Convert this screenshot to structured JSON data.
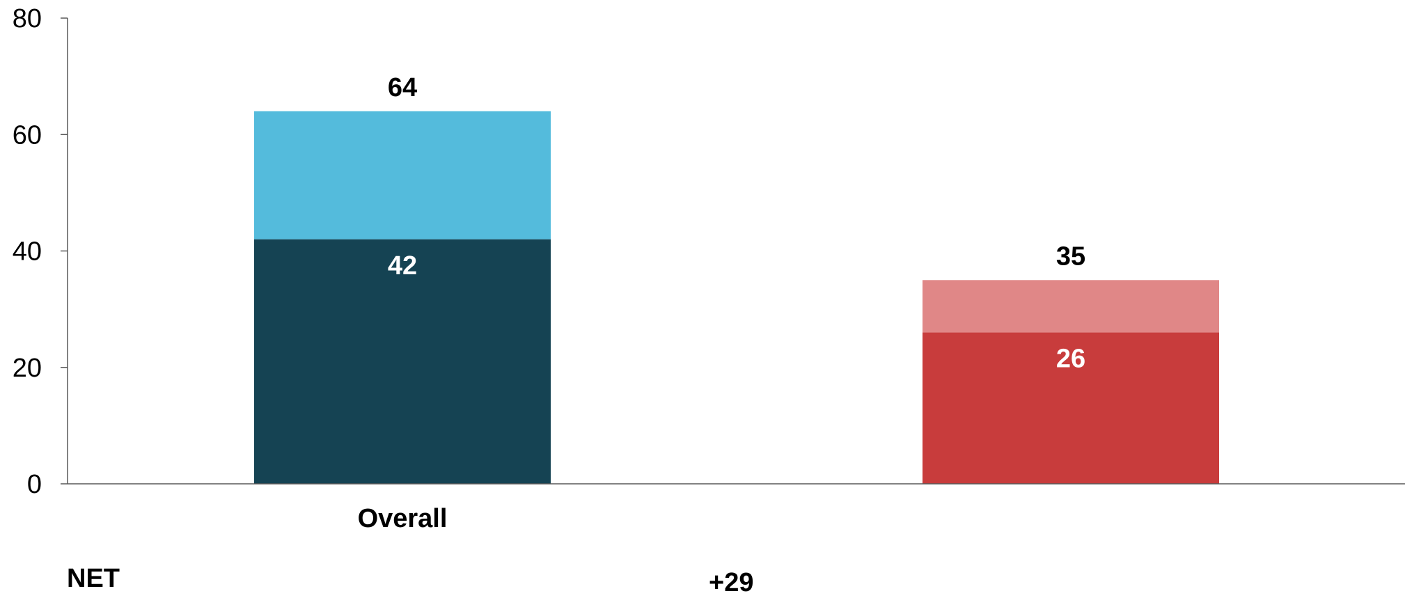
{
  "chart_data": {
    "type": "bar",
    "stacked": true,
    "categories": [
      "Overall",
      ""
    ],
    "ylim": [
      0,
      80
    ],
    "yticks": [
      0,
      20,
      40,
      60,
      80
    ],
    "grid": false,
    "bars": [
      {
        "category": "Overall",
        "total": 64,
        "inner": 42,
        "inner_color": "#154353",
        "outer_color": "#54BBDC"
      },
      {
        "category": "",
        "total": 35,
        "inner": 26,
        "inner_color": "#C83C3C",
        "outer_color": "#E08787"
      }
    ]
  },
  "net": {
    "label": "NET",
    "value": "+29"
  },
  "colors": {
    "axis": "#595959"
  }
}
